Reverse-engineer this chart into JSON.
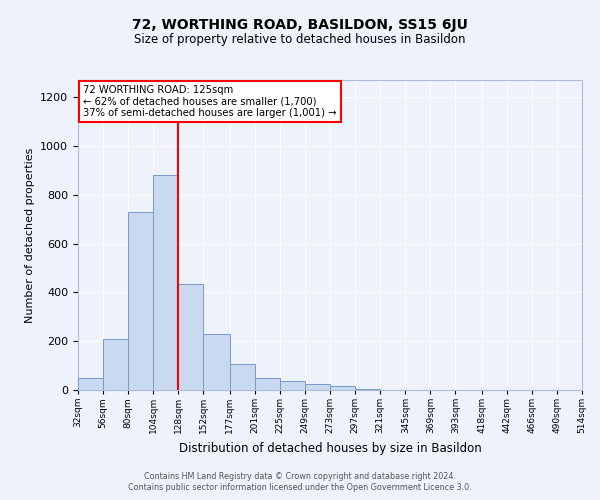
{
  "title": "72, WORTHING ROAD, BASILDON, SS15 6JU",
  "subtitle": "Size of property relative to detached houses in Basildon",
  "xlabel": "Distribution of detached houses by size in Basildon",
  "ylabel": "Number of detached properties",
  "bar_values": [
    50,
    210,
    730,
    880,
    435,
    230,
    105,
    48,
    38,
    25,
    15,
    5,
    0,
    0,
    0,
    0,
    0,
    0,
    0,
    0
  ],
  "bin_edges": [
    32,
    56,
    80,
    104,
    128,
    152,
    177,
    201,
    225,
    249,
    273,
    297,
    321,
    345,
    369,
    393,
    418,
    442,
    466,
    490,
    514
  ],
  "tick_labels": [
    "32sqm",
    "56sqm",
    "80sqm",
    "104sqm",
    "128sqm",
    "152sqm",
    "177sqm",
    "201sqm",
    "225sqm",
    "249sqm",
    "273sqm",
    "297sqm",
    "321sqm",
    "345sqm",
    "369sqm",
    "393sqm",
    "418sqm",
    "442sqm",
    "466sqm",
    "490sqm",
    "514sqm"
  ],
  "bar_color": "#c9d9f0",
  "bar_edge_color": "#7799cc",
  "reference_line_x": 128,
  "reference_line_color": "red",
  "ylim": [
    0,
    1270
  ],
  "yticks": [
    0,
    200,
    400,
    600,
    800,
    1000,
    1200
  ],
  "annotation_title": "72 WORTHING ROAD: 125sqm",
  "annotation_line1": "← 62% of detached houses are smaller (1,700)",
  "annotation_line2": "37% of semi-detached houses are larger (1,001) →",
  "footer_line1": "Contains HM Land Registry data © Crown copyright and database right 2024.",
  "footer_line2": "Contains public sector information licensed under the Open Government Licence 3.0.",
  "background_color": "#eef2fb",
  "grid_color": "#ffffff"
}
